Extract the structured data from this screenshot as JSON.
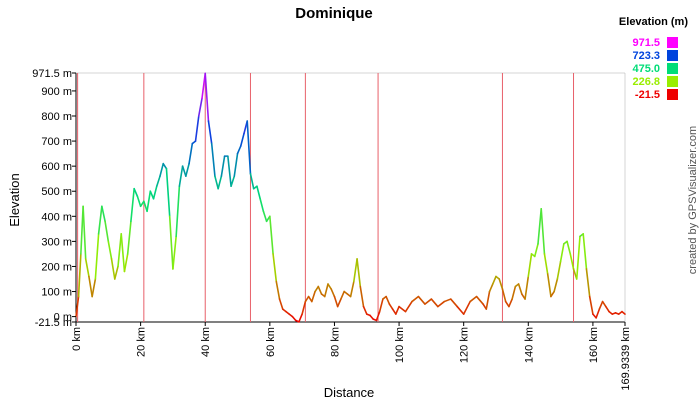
{
  "chart_data": {
    "type": "area",
    "title": "Dominique",
    "xlabel": "Distance",
    "ylabel": "Elevation",
    "credit": "created by GPSVisualizer.com",
    "xlim": [
      0,
      169.9339
    ],
    "ylim": [
      -21.5,
      971.5
    ],
    "x_ticks": [
      {
        "value": 0,
        "label": "0 km"
      },
      {
        "value": 20,
        "label": "20 km"
      },
      {
        "value": 40,
        "label": "40 km"
      },
      {
        "value": 60,
        "label": "60 km"
      },
      {
        "value": 80,
        "label": "80 km"
      },
      {
        "value": 100,
        "label": "100 km"
      },
      {
        "value": 120,
        "label": "120 km"
      },
      {
        "value": 140,
        "label": "140 km"
      },
      {
        "value": 160,
        "label": "160 km"
      },
      {
        "value": 169.9339,
        "label": "169.9339 km"
      }
    ],
    "y_ticks": [
      {
        "value": 971.5,
        "label": "971.5 m"
      },
      {
        "value": 900,
        "label": "900 m"
      },
      {
        "value": 800,
        "label": "800 m"
      },
      {
        "value": 700,
        "label": "700 m"
      },
      {
        "value": 600,
        "label": "600 m"
      },
      {
        "value": 500,
        "label": "500 m"
      },
      {
        "value": 400,
        "label": "400 m"
      },
      {
        "value": 300,
        "label": "300 m"
      },
      {
        "value": 200,
        "label": "200 m"
      },
      {
        "value": 100,
        "label": "100 m"
      },
      {
        "value": 0,
        "label": "0 m"
      },
      {
        "value": -21.5,
        "label": "-21.5 m"
      }
    ],
    "legend": {
      "title": "Elevation (m)",
      "position": "top-right",
      "entries": [
        {
          "label": "971.5",
          "color": "#ff00ff"
        },
        {
          "label": "723.3",
          "color": "#0044dd"
        },
        {
          "label": "475.0",
          "color": "#00dd77"
        },
        {
          "label": "226.8",
          "color": "#99ee00"
        },
        {
          "label": "-21.5",
          "color": "#ee0000"
        }
      ]
    },
    "segment_markers_km": [
      0.5,
      21,
      40,
      54,
      71,
      93.5,
      132,
      154
    ],
    "series": [
      {
        "x": [
          0,
          0.8,
          1.5,
          2.2,
          3,
          4,
          5,
          6,
          7,
          8,
          9,
          10,
          11,
          12,
          13,
          14,
          15,
          16,
          17,
          18,
          19,
          20,
          21,
          22,
          23,
          24,
          25,
          26,
          27,
          28,
          29,
          30,
          31,
          32,
          33,
          34,
          35,
          36,
          37,
          38,
          39,
          40,
          41,
          42,
          43,
          44,
          45,
          46,
          47,
          48,
          49,
          50,
          51,
          52,
          53,
          54,
          55,
          56,
          57,
          58,
          59,
          60,
          61,
          62,
          63,
          64,
          65,
          66,
          67,
          68,
          69,
          70,
          71,
          72,
          73,
          74,
          75,
          76,
          77,
          78,
          79,
          80,
          81,
          82,
          83,
          84,
          85,
          86,
          87,
          88,
          89,
          90,
          91,
          92,
          93,
          94,
          95,
          96,
          97,
          98,
          99,
          100,
          102,
          104,
          106,
          108,
          110,
          112,
          114,
          116,
          118,
          120,
          122,
          124,
          126,
          127,
          128,
          129,
          130,
          131,
          132,
          133,
          134,
          135,
          136,
          137,
          138,
          139,
          140,
          141,
          142,
          143,
          144,
          145,
          146,
          147,
          148,
          149,
          150,
          151,
          152,
          153,
          154,
          155,
          156,
          157,
          158,
          159,
          160,
          161,
          162,
          163,
          164,
          165,
          166,
          167,
          168,
          169,
          169.9339
        ],
        "values": [
          0,
          80,
          250,
          440,
          230,
          160,
          80,
          150,
          330,
          440,
          380,
          300,
          230,
          150,
          200,
          330,
          180,
          250,
          380,
          510,
          480,
          440,
          460,
          420,
          500,
          470,
          520,
          560,
          610,
          590,
          400,
          190,
          320,
          520,
          600,
          560,
          610,
          690,
          700,
          800,
          870,
          970,
          780,
          690,
          560,
          510,
          560,
          640,
          640,
          520,
          560,
          650,
          680,
          730,
          780,
          570,
          510,
          520,
          470,
          420,
          380,
          400,
          250,
          140,
          70,
          30,
          20,
          10,
          0,
          -15,
          -21,
          10,
          60,
          80,
          60,
          100,
          120,
          90,
          80,
          130,
          110,
          80,
          40,
          70,
          100,
          90,
          80,
          140,
          230,
          120,
          40,
          10,
          5,
          -10,
          -15,
          20,
          70,
          80,
          50,
          30,
          10,
          40,
          20,
          60,
          80,
          50,
          70,
          40,
          60,
          70,
          40,
          10,
          60,
          80,
          50,
          30,
          100,
          130,
          160,
          150,
          110,
          60,
          40,
          70,
          120,
          130,
          90,
          70,
          160,
          250,
          240,
          290,
          430,
          250,
          170,
          80,
          100,
          150,
          220,
          290,
          300,
          250,
          190,
          150,
          320,
          330,
          190,
          80,
          10,
          -5,
          30,
          60,
          40,
          20,
          10,
          15,
          10,
          20,
          10
        ]
      }
    ]
  }
}
